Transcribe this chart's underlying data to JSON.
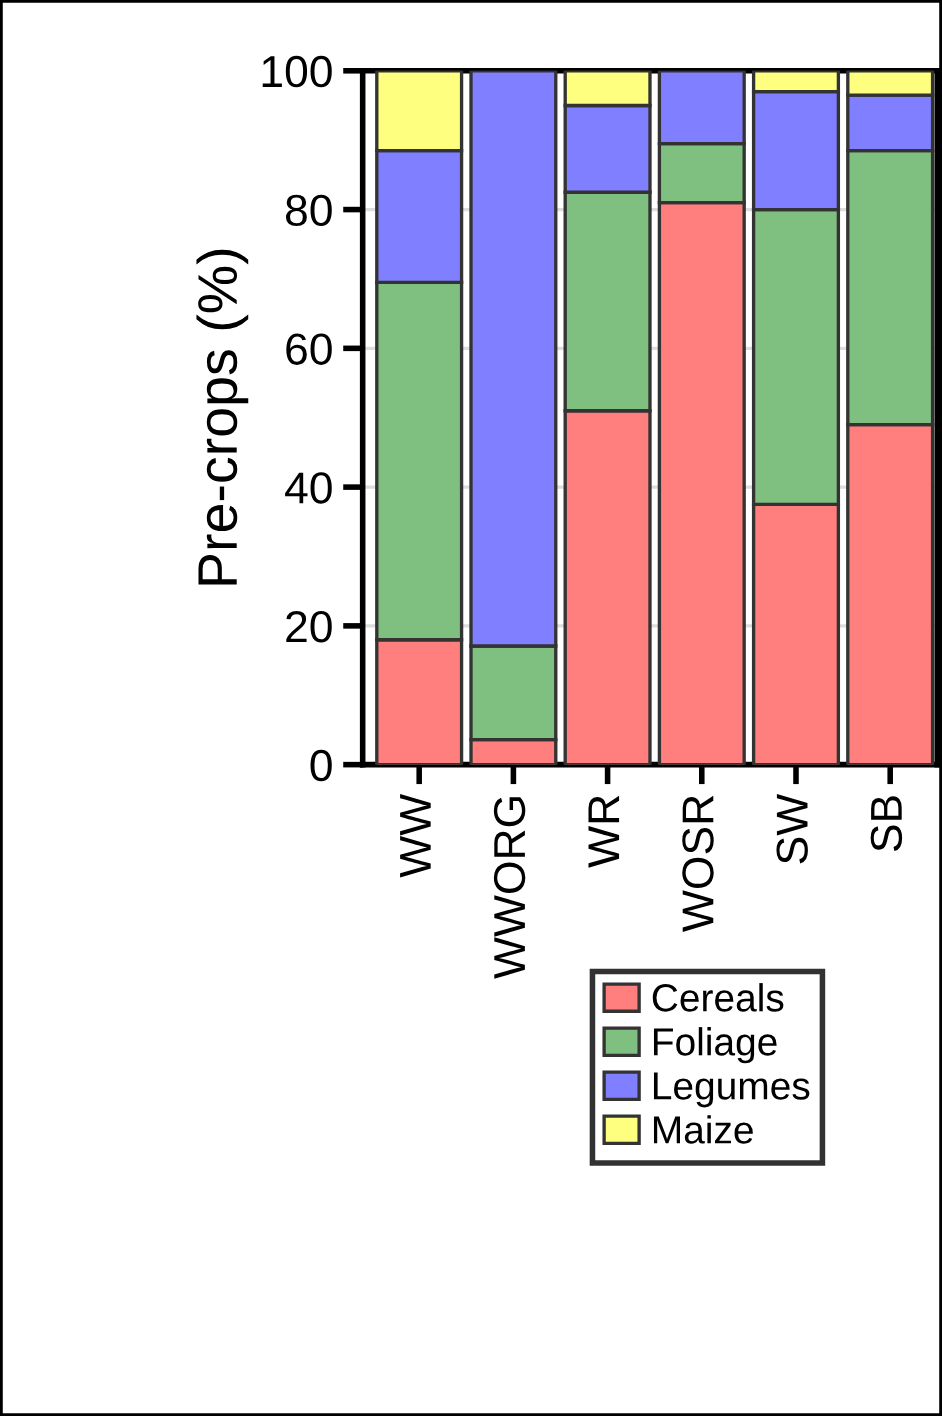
{
  "chart_data": {
    "type": "bar",
    "stacked": true,
    "ylabel": "Pre-crops (%)",
    "categories": [
      "WW",
      "WWORG",
      "WR",
      "WOSR",
      "SW",
      "SB"
    ],
    "series": [
      {
        "name": "Cereals",
        "color": "#ff7f7f",
        "values": [
          18,
          3.6,
          51,
          81,
          37.5,
          49
        ]
      },
      {
        "name": "Foliage",
        "color": "#7fbf7f",
        "values": [
          51.5,
          13.5,
          31.5,
          8.5,
          42.5,
          39.5
        ]
      },
      {
        "name": "Legumes",
        "color": "#7f7fff",
        "values": [
          19,
          82.9,
          12.5,
          10.5,
          17,
          8
        ]
      },
      {
        "name": "Maize",
        "color": "#ffff7f",
        "values": [
          11.5,
          0,
          5,
          0,
          3,
          3.5
        ]
      }
    ],
    "ylim": [
      0,
      100
    ],
    "yticks": [
      0,
      20,
      40,
      60,
      80,
      100
    ],
    "grid": "y",
    "legend": "bottom"
  }
}
